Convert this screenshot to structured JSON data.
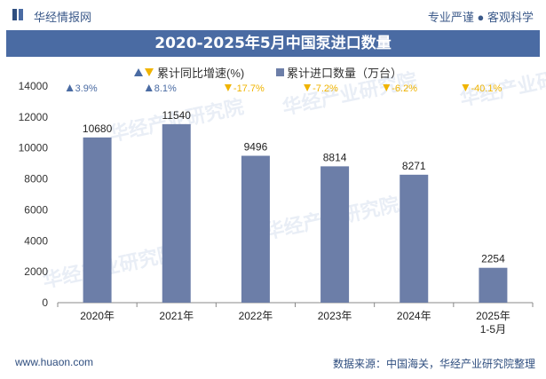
{
  "header": {
    "brand": "华经情报网",
    "tagline": "专业严谨 ● 客观科学",
    "title": "2020-2025年5月中国泵进口数量"
  },
  "footer": {
    "website": "www.huaon.com",
    "source": "数据来源：中国海关，华经产业研究院整理"
  },
  "watermark": "华经产业研究院",
  "colors": {
    "bar": "#6c7ea8",
    "up": "#4a6ba3",
    "down": "#f0b400",
    "title_bg": "#4a6ba3"
  },
  "chart_data": {
    "type": "bar",
    "categories": [
      "2020年",
      "2021年",
      "2022年",
      "2023年",
      "2024年",
      "2025年\n1-5月"
    ],
    "series": [
      {
        "name": "累计进口数量（万台）",
        "values": [
          10680,
          11540,
          9496,
          8814,
          8271,
          2254
        ]
      }
    ],
    "growth": {
      "name": "累计同比增速(%)",
      "labels": [
        "3.9%",
        "8.1%",
        "-17.7%",
        "-7.2%",
        "-6.2%",
        "-40.1%"
      ],
      "directions": [
        "up",
        "up",
        "down",
        "down",
        "down",
        "down"
      ]
    },
    "ylim": [
      0,
      14000
    ],
    "yticks": [
      0,
      2000,
      4000,
      6000,
      8000,
      10000,
      12000,
      14000
    ],
    "grid": false,
    "legend_position": "top"
  }
}
